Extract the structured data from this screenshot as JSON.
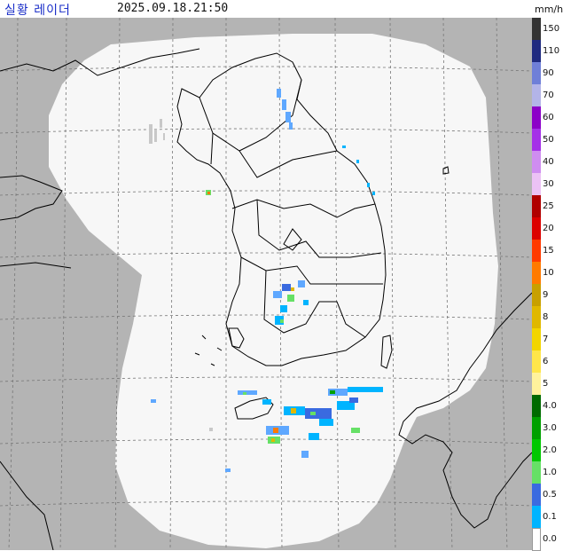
{
  "header": {
    "title": "실황 레이더",
    "timestamp": "2025.09.18.21:50",
    "unit": "mm/h"
  },
  "legend": {
    "levels": [
      {
        "label": "150",
        "color": "#333333"
      },
      {
        "label": "110",
        "color": "#1f2a80"
      },
      {
        "label": "90",
        "color": "#6f7fd8"
      },
      {
        "label": "70",
        "color": "#b3b4e8"
      },
      {
        "label": "60",
        "color": "#8c00c8"
      },
      {
        "label": "50",
        "color": "#a530e8"
      },
      {
        "label": "40",
        "color": "#cf8df0"
      },
      {
        "label": "30",
        "color": "#ecc2f5"
      },
      {
        "label": "25",
        "color": "#b00000"
      },
      {
        "label": "20",
        "color": "#dc0000"
      },
      {
        "label": "15",
        "color": "#ff3a00"
      },
      {
        "label": "10",
        "color": "#ff7a00"
      },
      {
        "label": "9",
        "color": "#c8a000"
      },
      {
        "label": "8",
        "color": "#e0b800"
      },
      {
        "label": "7",
        "color": "#f2d500"
      },
      {
        "label": "6",
        "color": "#ffe64a"
      },
      {
        "label": "5",
        "color": "#fff29c"
      },
      {
        "label": "4.0",
        "color": "#006a00"
      },
      {
        "label": "3.0",
        "color": "#00a000"
      },
      {
        "label": "2.0",
        "color": "#00c800"
      },
      {
        "label": "1.0",
        "color": "#66e066"
      },
      {
        "label": "0.5",
        "color": "#3a6ae0"
      },
      {
        "label": "0.1",
        "color": "#00b4ff"
      },
      {
        "label": "0.0",
        "color": "#ffffff"
      }
    ]
  },
  "map": {
    "colors": {
      "outside_coverage": "#b4b4b4",
      "coverage": "#f7f7f7",
      "grid": "#777777",
      "coast": "#000000"
    }
  }
}
